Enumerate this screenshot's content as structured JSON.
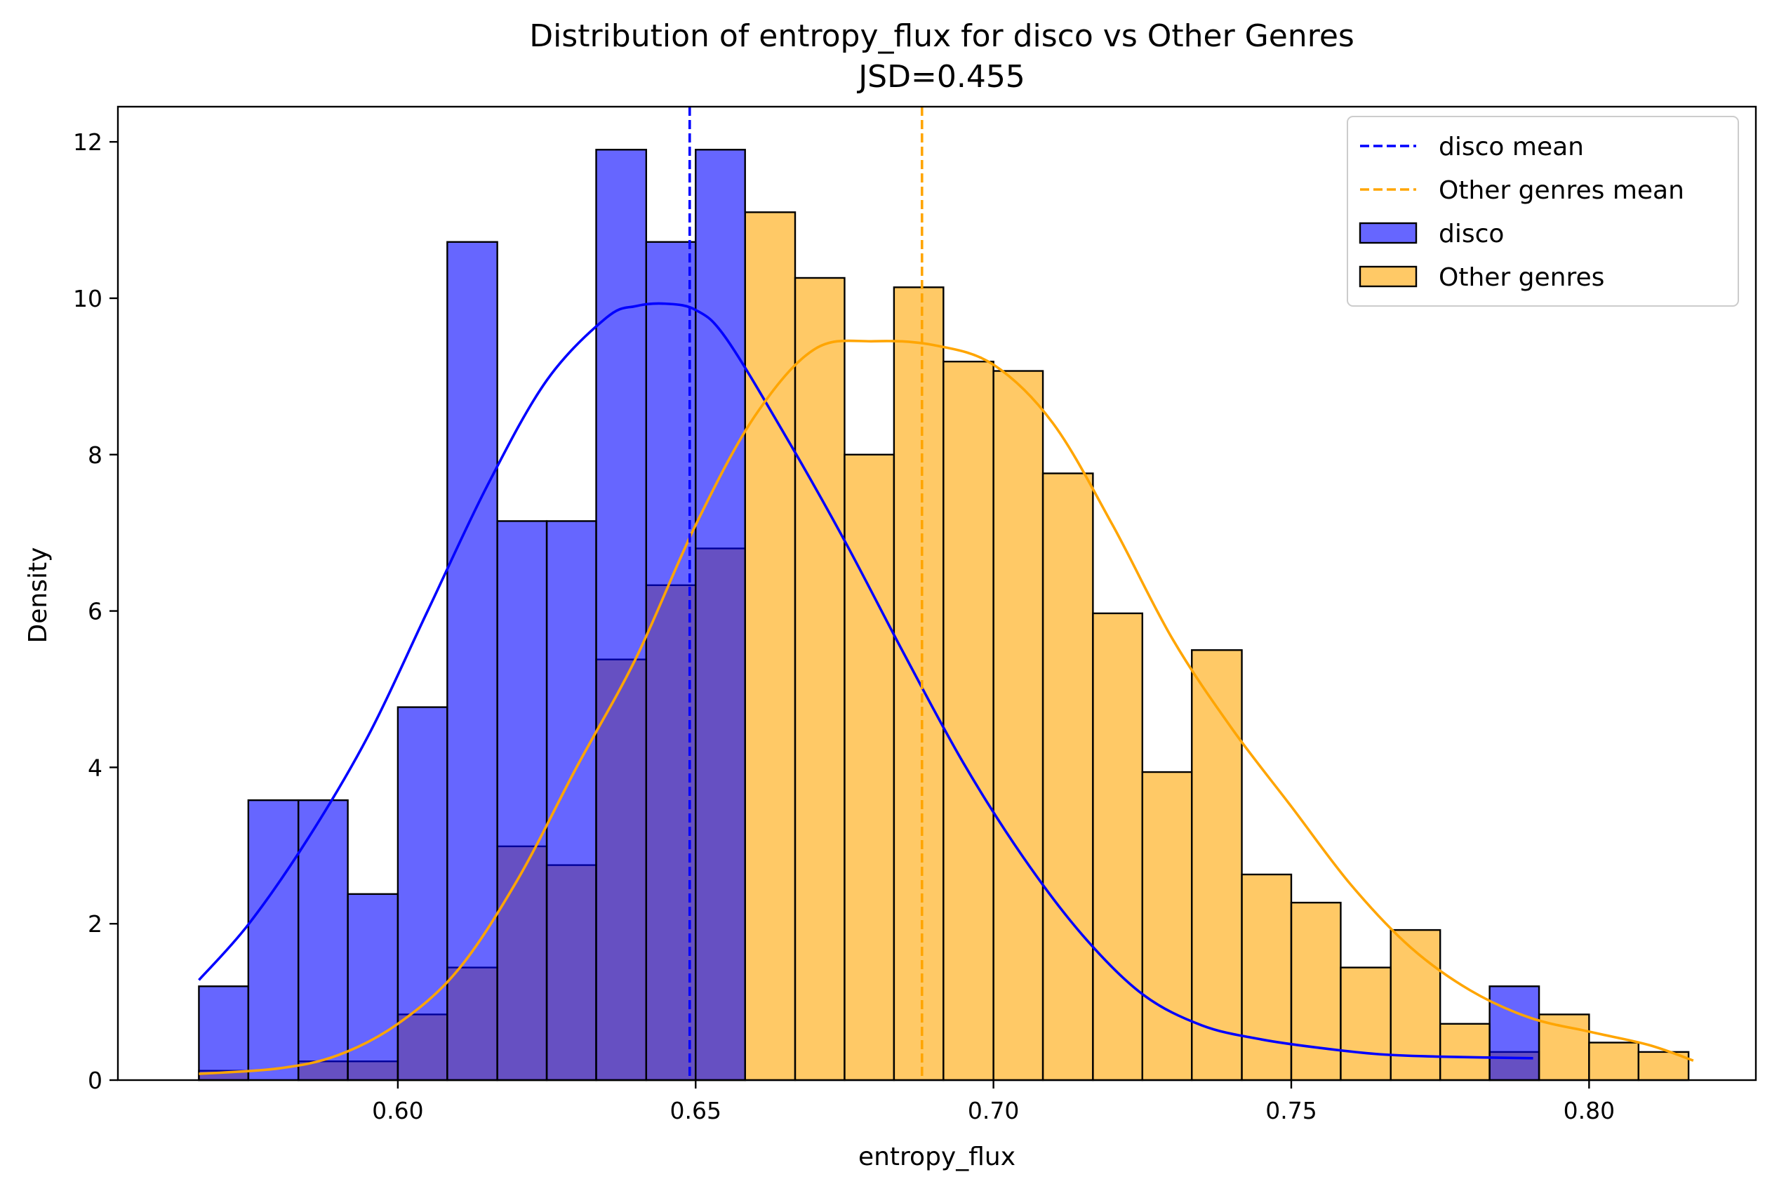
{
  "chart_data": {
    "type": "histogram",
    "title": "Distribution of entropy_flux for disco vs Other Genres",
    "subtitle": "JSD=0.455",
    "xlabel": "entropy_flux",
    "ylabel": "Density",
    "xlim": [
      0.553,
      0.828
    ],
    "ylim": [
      0,
      12.45
    ],
    "x_ticks": [
      0.6,
      0.65,
      0.7,
      0.75,
      0.8
    ],
    "x_tick_labels": [
      "0.60",
      "0.65",
      "0.70",
      "0.75",
      "0.80"
    ],
    "y_ticks": [
      0,
      2,
      4,
      6,
      8,
      10,
      12
    ],
    "y_tick_labels": [
      "0",
      "2",
      "4",
      "6",
      "8",
      "10",
      "12"
    ],
    "grid": false,
    "legend_position": "top-right",
    "bin_edges": [
      0.5666,
      0.5749,
      0.5833,
      0.5916,
      0.6,
      0.6083,
      0.6167,
      0.625,
      0.6333,
      0.6417,
      0.65,
      0.6583,
      0.6667,
      0.675,
      0.6833,
      0.6916,
      0.7,
      0.7083,
      0.7167,
      0.725,
      0.7333,
      0.7417,
      0.75,
      0.7583,
      0.7667,
      0.775,
      0.7833,
      0.7916,
      0.8,
      0.8083,
      0.8167
    ],
    "series": [
      {
        "name": "disco",
        "color": "#0000ff",
        "fill_opacity": 0.6,
        "values": [
          1.2,
          3.58,
          3.58,
          2.38,
          4.77,
          10.72,
          7.15,
          7.15,
          11.9,
          10.72,
          11.9,
          0,
          0,
          0,
          0,
          0,
          0,
          0,
          0,
          0,
          0,
          0,
          0,
          0,
          0,
          0,
          1.2,
          0,
          0,
          0
        ],
        "mean": 0.649,
        "kde": {
          "x": [
            0.5666,
            0.575,
            0.585,
            0.595,
            0.605,
            0.615,
            0.625,
            0.635,
            0.64,
            0.645,
            0.65,
            0.655,
            0.665,
            0.675,
            0.685,
            0.695,
            0.705,
            0.715,
            0.725,
            0.735,
            0.745,
            0.755,
            0.765,
            0.775,
            0.7906
          ],
          "y": [
            1.28,
            2.0,
            3.1,
            4.4,
            6.0,
            7.6,
            8.95,
            9.75,
            9.9,
            9.93,
            9.85,
            9.5,
            8.25,
            6.9,
            5.45,
            4.05,
            2.85,
            1.85,
            1.1,
            0.7,
            0.52,
            0.41,
            0.33,
            0.3,
            0.28
          ]
        }
      },
      {
        "name": "Other genres",
        "color": "#ffa500",
        "fill_opacity": 0.6,
        "values": [
          0.12,
          0,
          0.24,
          0.24,
          0.84,
          1.44,
          2.99,
          2.75,
          5.38,
          6.33,
          6.8,
          11.1,
          10.26,
          8.0,
          10.14,
          9.19,
          9.07,
          7.76,
          5.97,
          3.94,
          5.5,
          2.63,
          2.27,
          1.44,
          1.92,
          0.72,
          0.36,
          0.84,
          0.48,
          0.36
        ],
        "values_hidden_by_disco": [
          0,
          0.12,
          0,
          0,
          0,
          0,
          0,
          0,
          0,
          0,
          0
        ],
        "mean": 0.688,
        "kde": {
          "x": [
            0.5666,
            0.58,
            0.59,
            0.6,
            0.61,
            0.62,
            0.63,
            0.64,
            0.65,
            0.66,
            0.67,
            0.68,
            0.69,
            0.7,
            0.71,
            0.72,
            0.73,
            0.74,
            0.75,
            0.76,
            0.77,
            0.78,
            0.79,
            0.8,
            0.81,
            0.8175
          ],
          "y": [
            0.08,
            0.15,
            0.32,
            0.72,
            1.4,
            2.55,
            4.0,
            5.4,
            7.1,
            8.5,
            9.35,
            9.45,
            9.4,
            9.15,
            8.4,
            7.1,
            5.65,
            4.5,
            3.5,
            2.5,
            1.7,
            1.15,
            0.8,
            0.62,
            0.45,
            0.25
          ]
        }
      }
    ],
    "reference_lines": [
      {
        "label": "disco mean",
        "x": 0.649,
        "color": "#0000ff",
        "style": "dashed"
      },
      {
        "label": "Other genres mean",
        "x": 0.688,
        "color": "#ffa500",
        "style": "dashed"
      }
    ],
    "legend": [
      {
        "label": "disco mean",
        "kind": "line",
        "color": "#0000ff"
      },
      {
        "label": "Other genres mean",
        "kind": "line",
        "color": "#ffa500"
      },
      {
        "label": "disco",
        "kind": "patch",
        "color": "#0000ff"
      },
      {
        "label": "Other genres",
        "kind": "patch",
        "color": "#ffa500"
      }
    ]
  }
}
